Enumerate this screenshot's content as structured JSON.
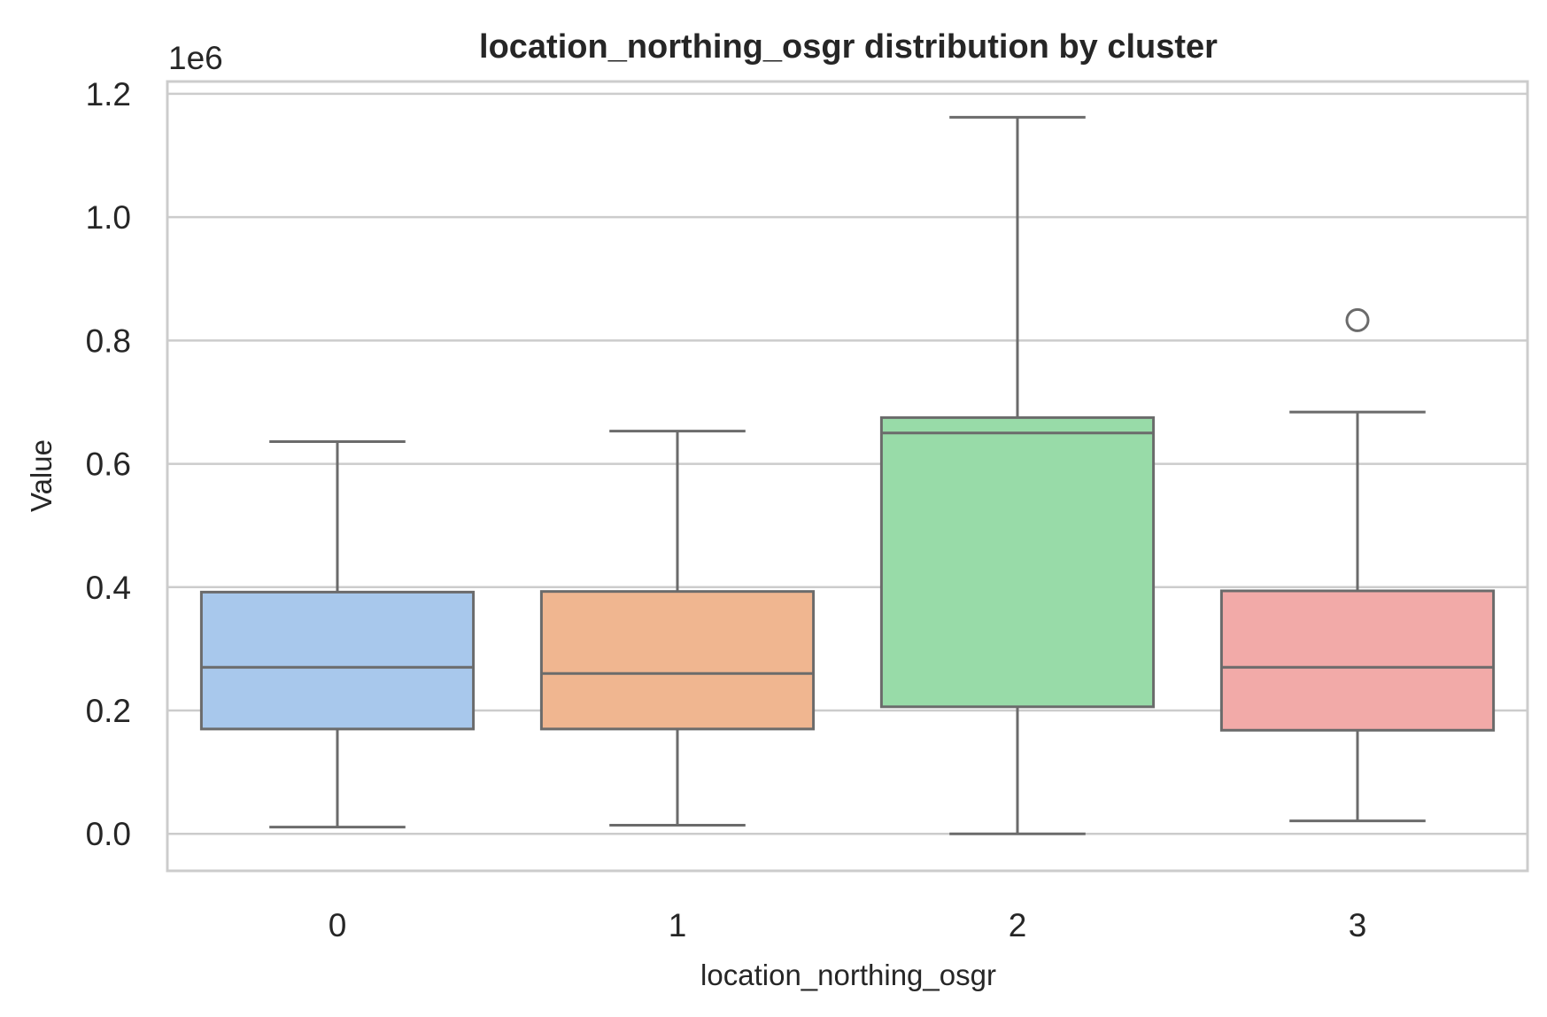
{
  "chart_data": {
    "type": "box",
    "title": "location_northing_osgr distribution by cluster",
    "xlabel": "location_northing_osgr",
    "ylabel": "Value",
    "y_offset_label": "1e6",
    "ylim": [
      -0.06,
      1.22
    ],
    "y_ticks": [
      0.0,
      0.2,
      0.4,
      0.6,
      0.8,
      1.0,
      1.2
    ],
    "y_tick_labels": [
      "0.0",
      "0.2",
      "0.4",
      "0.6",
      "0.8",
      "1.0",
      "1.2"
    ],
    "grid": true,
    "categories": [
      "0",
      "1",
      "2",
      "3"
    ],
    "boxes": [
      {
        "category": "0",
        "whisker_low": 0.011,
        "q1": 0.17,
        "median": 0.27,
        "q3": 0.392,
        "whisker_high": 0.636,
        "outliers": [],
        "color": "#A8C8EC"
      },
      {
        "category": "1",
        "whisker_low": 0.014,
        "q1": 0.17,
        "median": 0.26,
        "q3": 0.393,
        "whisker_high": 0.653,
        "outliers": [],
        "color": "#F0B690"
      },
      {
        "category": "2",
        "whisker_low": 0.0,
        "q1": 0.206,
        "median": 0.65,
        "q3": 0.675,
        "whisker_high": 1.162,
        "outliers": [],
        "color": "#98DBA8"
      },
      {
        "category": "3",
        "whisker_low": 0.021,
        "q1": 0.168,
        "median": 0.27,
        "q3": 0.394,
        "whisker_high": 0.684,
        "outliers": [
          0.833
        ],
        "color": "#F2AAA8"
      }
    ]
  },
  "colors": {
    "grid": "#cccccc",
    "spine": "#cccccc",
    "box_edge": "#6b6b6b",
    "text": "#262626"
  }
}
